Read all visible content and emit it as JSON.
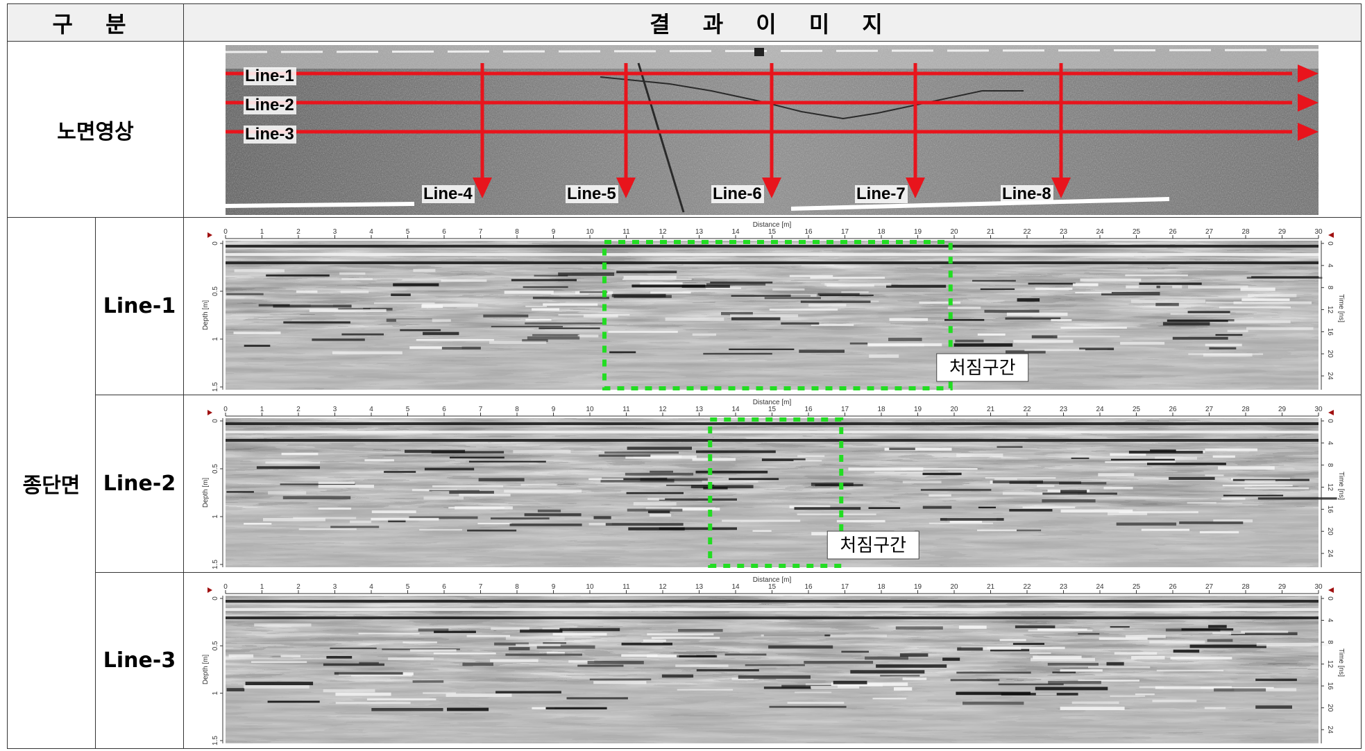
{
  "header": {
    "col1": "구  분",
    "col2": "결 과 이 미 지"
  },
  "rows": {
    "road_image": {
      "label": "노면영상"
    },
    "longitudinal": {
      "label": "종단면"
    }
  },
  "road": {
    "lines": [
      "Line-1",
      "Line-2",
      "Line-3",
      "Line-4",
      "Line-5",
      "Line-6",
      "Line-7",
      "Line-8"
    ],
    "arrow_color": "#e8141c"
  },
  "gpr": {
    "distance_label": "Distance [m]",
    "depth_label": "Depth [m]",
    "time_label": "Time [ns]",
    "distance_ticks": [
      "0",
      "1",
      "2",
      "3",
      "4",
      "5",
      "6",
      "7",
      "8",
      "9",
      "10",
      "11",
      "12",
      "13",
      "14",
      "15",
      "16",
      "17",
      "18",
      "19",
      "20",
      "21",
      "22",
      "23",
      "24",
      "25",
      "26",
      "27",
      "28",
      "29",
      "30"
    ],
    "depth_ticks": [
      "0",
      "0.5",
      "1",
      "1.5"
    ],
    "time_ticks": [
      "0",
      "4",
      "8",
      "12",
      "16",
      "20",
      "24"
    ],
    "sections": [
      {
        "name": "Line-1",
        "zone": {
          "label": "처짐구간",
          "from_m": 10.4,
          "to_m": 19.9
        }
      },
      {
        "name": "Line-2",
        "zone": {
          "label": "처짐구간",
          "from_m": 13.3,
          "to_m": 16.9
        }
      },
      {
        "name": "Line-3"
      }
    ],
    "zone_color": "#22dd22"
  }
}
